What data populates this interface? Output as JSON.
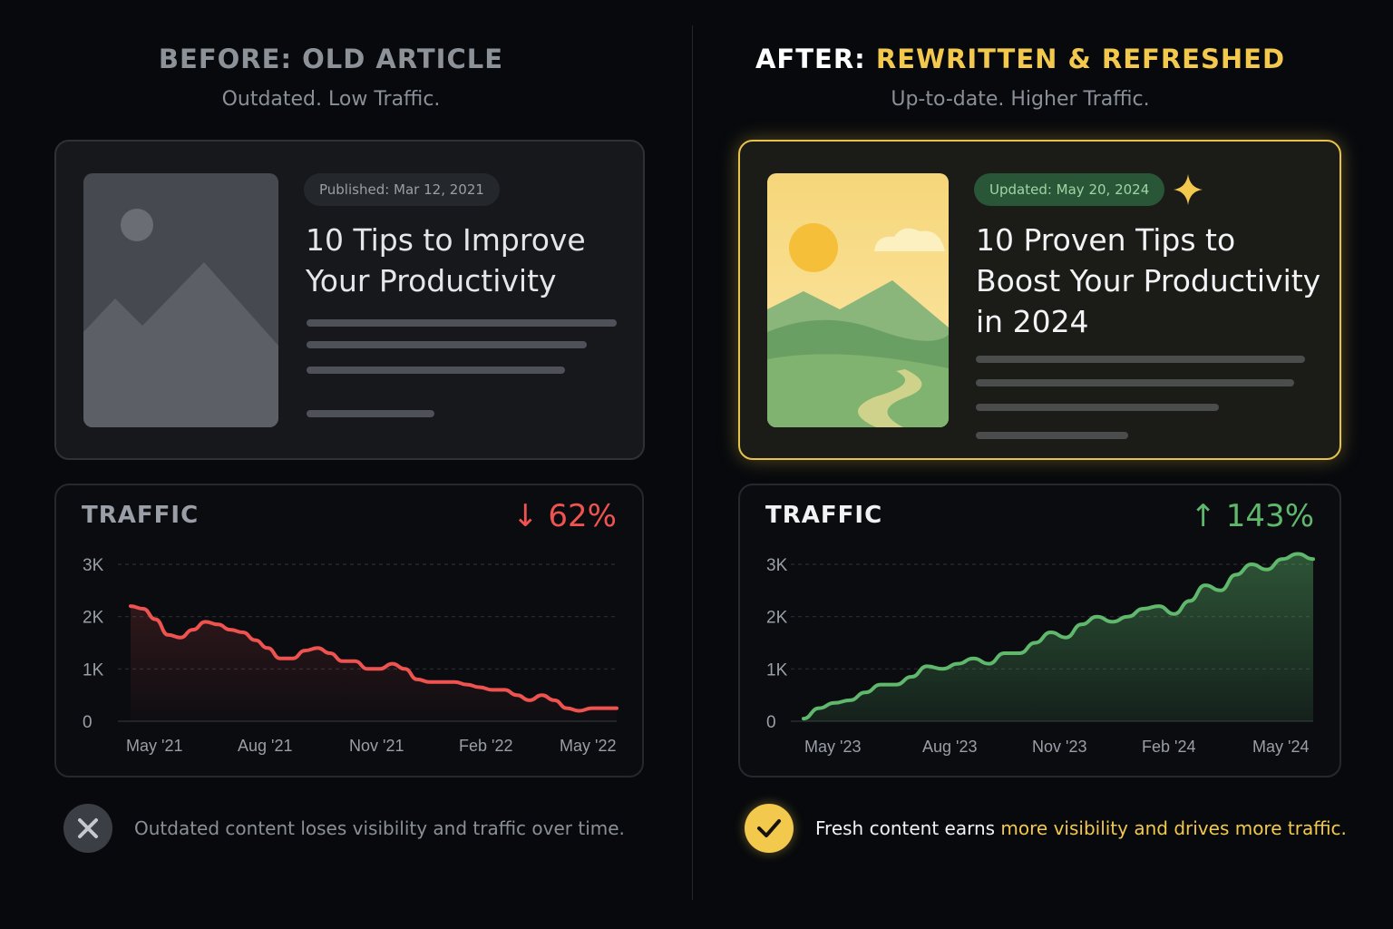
{
  "before": {
    "heading": "BEFORE: OLD ARTICLE",
    "subheading": "Outdated. Low Traffic.",
    "card": {
      "date_badge": "Published: Mar 12, 2021",
      "title_lines": [
        "10 Tips to Improve",
        "Your Productivity"
      ],
      "image_icon": "image-placeholder-icon"
    },
    "traffic_label": "TRAFFIC",
    "change_icon": "arrow-down-icon",
    "change": "62%",
    "footer_icon": "x-circle-icon",
    "footer_text": "Outdated content loses visibility and traffic over time."
  },
  "after": {
    "heading_prefix": "AFTER:",
    "heading_highlight": "REWRITTEN & REFRESHED",
    "subheading": "Up-to-date. Higher Traffic.",
    "card": {
      "date_badge": "Updated: May 20, 2024",
      "sparkle_icon": "sparkle-icon",
      "title_lines": [
        "10 Proven Tips to",
        "Boost Your Productivity",
        "in 2024"
      ],
      "image_icon": "landscape-illustration"
    },
    "traffic_label": "TRAFFIC",
    "change_icon": "arrow-up-icon",
    "change": "143%",
    "footer_icon": "check-circle-icon",
    "footer_text_plain": "Fresh content earns ",
    "footer_text_highlight": "more visibility and drives more traffic."
  },
  "colors": {
    "accent_yellow": "#f2c94c",
    "down_red": "#ef5350",
    "up_green": "#5fb86b",
    "muted_gray": "#8a8f98"
  },
  "chart_data": [
    {
      "type": "area",
      "title": "TRAFFIC",
      "change": "↓ 62%",
      "y_ticks": [
        "0",
        "1K",
        "2K",
        "3K"
      ],
      "ylim": [
        0,
        3000
      ],
      "x_ticks": [
        "May '21",
        "Aug '21",
        "Nov '21",
        "Feb '22",
        "May '22"
      ],
      "grid": true,
      "series": [
        {
          "values": [
            2200,
            2150,
            1950,
            1650,
            1600,
            1750,
            1900,
            1850,
            1750,
            1700,
            1550,
            1400,
            1200,
            1200,
            1350,
            1400,
            1300,
            1150,
            1150,
            1000,
            1000,
            1100,
            1000,
            800,
            750,
            750,
            750,
            700,
            650,
            600,
            600,
            500,
            400,
            500,
            400,
            250,
            200,
            250,
            250,
            250
          ]
        }
      ]
    },
    {
      "type": "area",
      "title": "TRAFFIC",
      "change": "↑ 143%",
      "y_ticks": [
        "0",
        "1K",
        "2K",
        "3K"
      ],
      "ylim": [
        0,
        3000
      ],
      "x_ticks": [
        "May '23",
        "Aug '23",
        "Nov '23",
        "Feb '24",
        "May '24"
      ],
      "grid": true,
      "series": [
        {
          "values": [
            50,
            250,
            350,
            400,
            550,
            700,
            700,
            850,
            1050,
            1000,
            1100,
            1200,
            1100,
            1300,
            1300,
            1500,
            1700,
            1600,
            1850,
            2000,
            1900,
            2000,
            2150,
            2200,
            2050,
            2300,
            2600,
            2500,
            2800,
            3000,
            2900,
            3100,
            3200,
            3100
          ]
        }
      ]
    }
  ]
}
